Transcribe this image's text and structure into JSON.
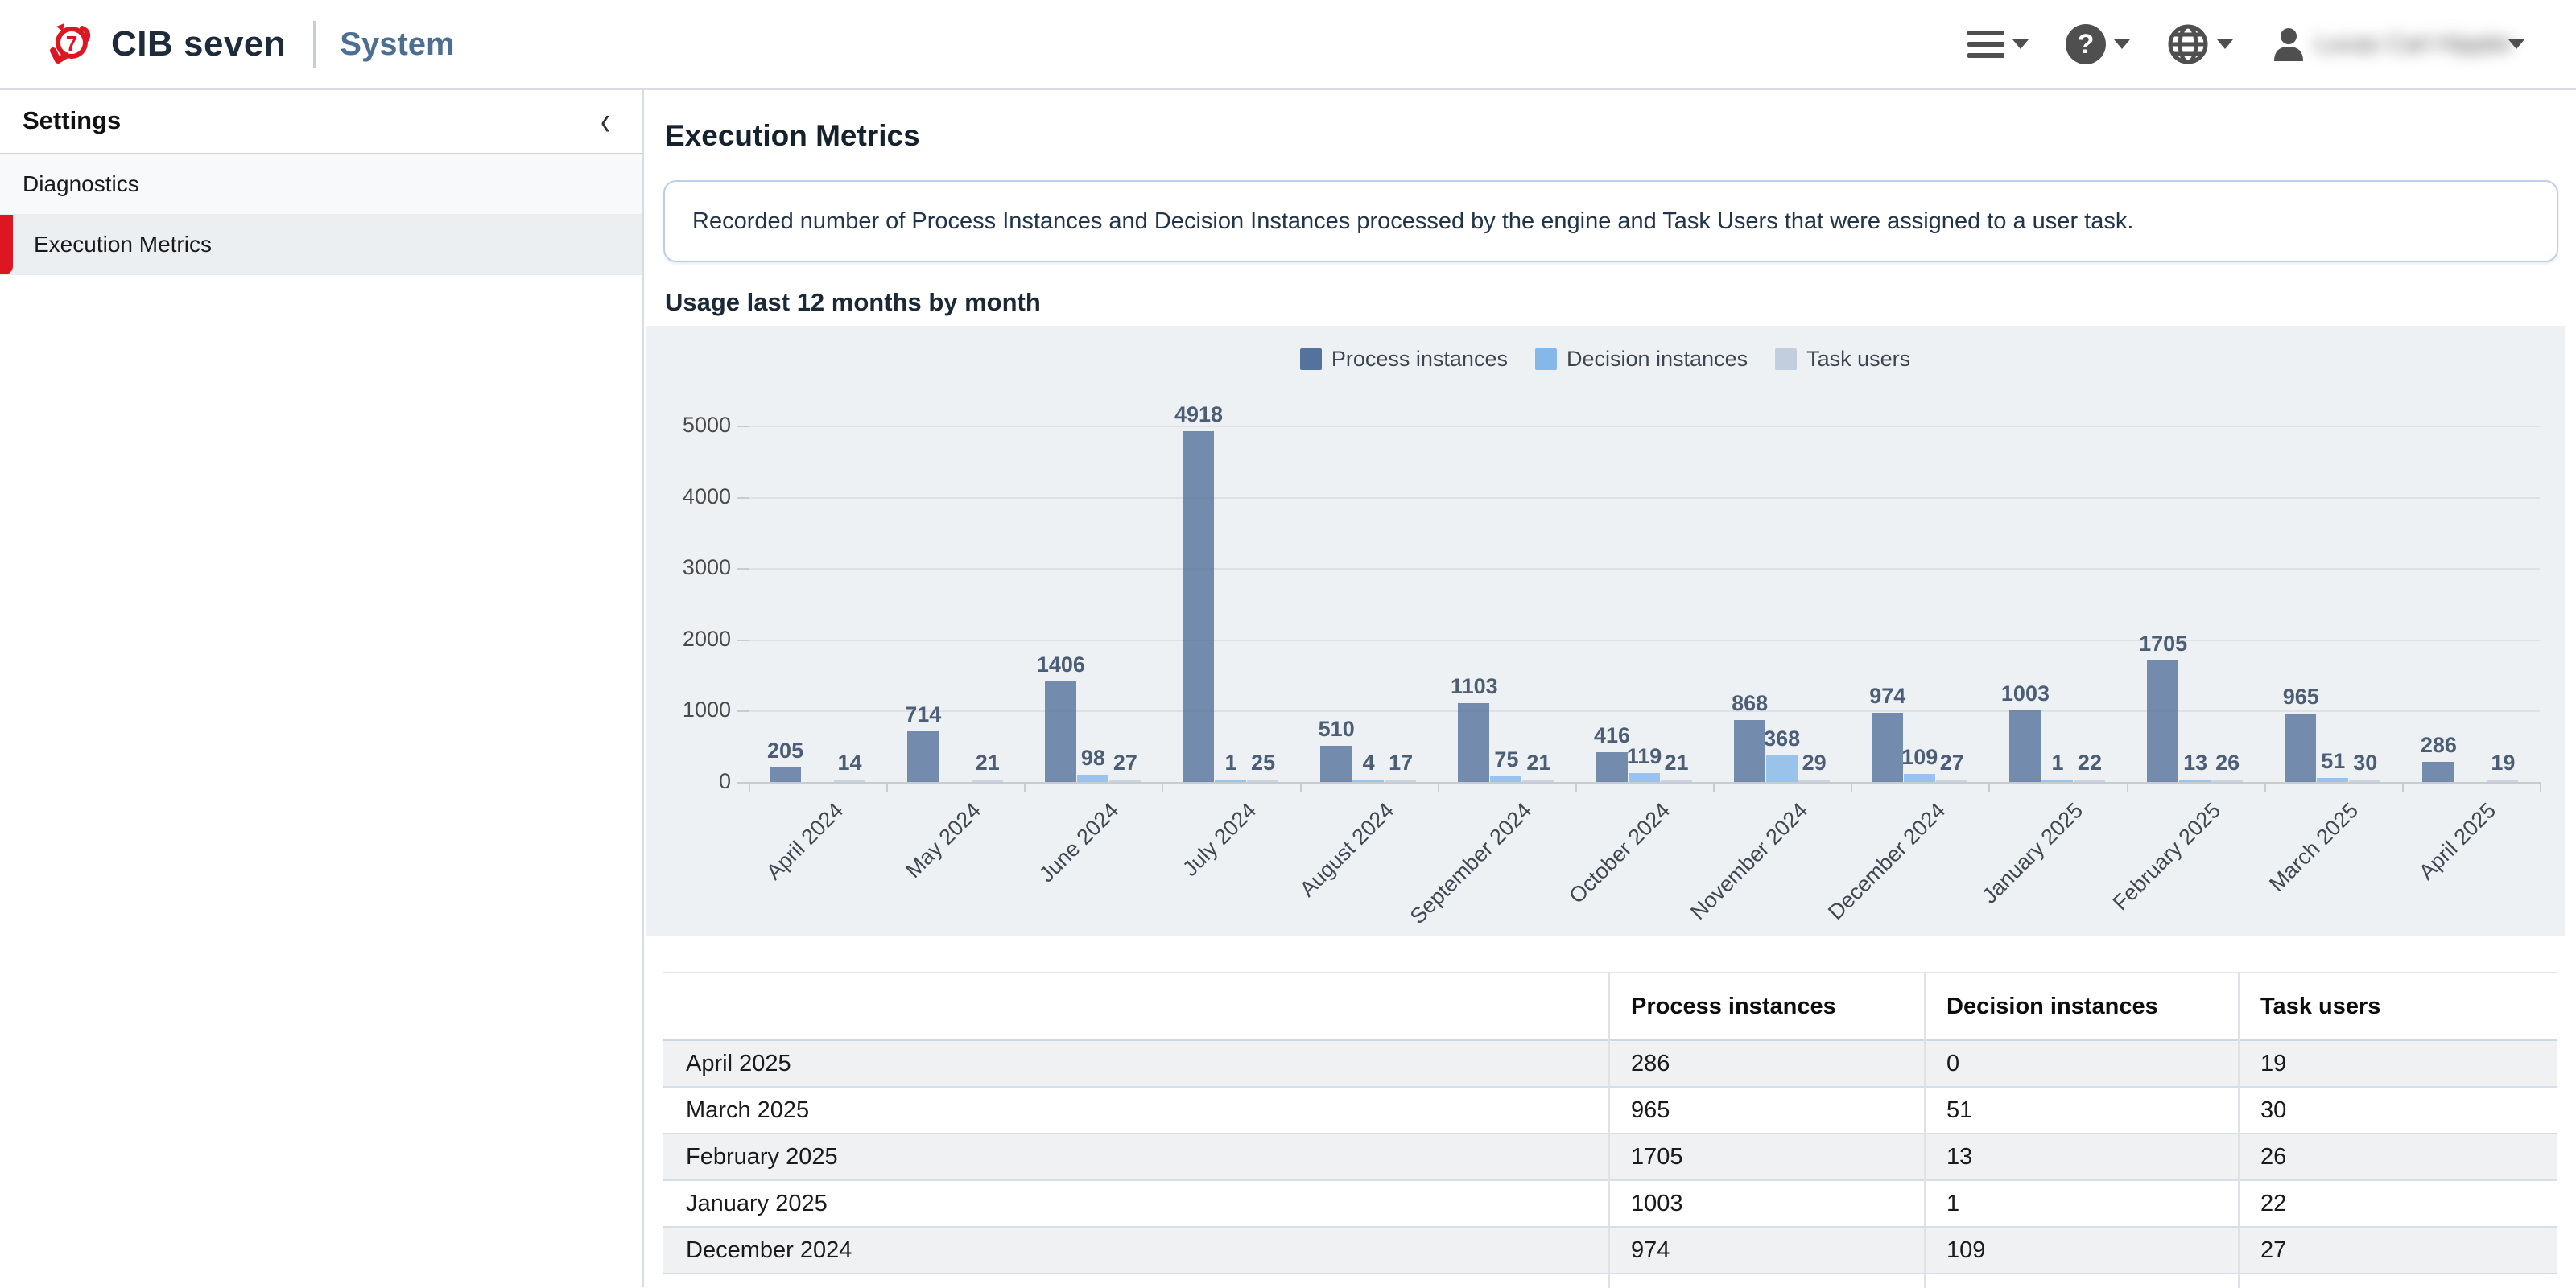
{
  "app": {
    "brand": "CIB seven",
    "module": "System"
  },
  "topbar": {
    "user_name": "Lucas Carl Hippler",
    "user_name_blurred": true,
    "icons": [
      "menu-icon",
      "help-icon",
      "language-globe-icon",
      "user-icon"
    ]
  },
  "sidebar": {
    "title": "Settings",
    "collapse_icon": "‹",
    "items": [
      {
        "label": "Diagnostics",
        "active": false
      },
      {
        "label": "Execution Metrics",
        "active": true
      }
    ]
  },
  "main": {
    "title": "Execution Metrics",
    "description": "Recorded number of Process Instances and Decision Instances processed by the engine and Task Users that were assigned to a user task.",
    "chart_title": "Usage last 12 months by month"
  },
  "colors": {
    "accent_red": "#dc1722",
    "brand_navy": "#1d2b3a",
    "module_blue": "#4c6e91",
    "chart_bg": "#eef1f4",
    "process_series": "#54739c",
    "decision_series": "#85b8e8",
    "task_series": "#c2cedd",
    "bar_label": "#4c5e76"
  },
  "chart_data": {
    "type": "bar",
    "title": "Usage last 12 months by month",
    "categories": [
      "April 2024",
      "May 2024",
      "June 2024",
      "July 2024",
      "August 2024",
      "September 2024",
      "October 2024",
      "November 2024",
      "December 2024",
      "January 2025",
      "February 2025",
      "March 2025",
      "April 2025"
    ],
    "series": [
      {
        "name": "Process instances",
        "color": "#54739c",
        "values": [
          205,
          714,
          1406,
          4918,
          510,
          1103,
          416,
          868,
          974,
          1003,
          1705,
          965,
          286
        ]
      },
      {
        "name": "Decision instances",
        "color": "#85b8e8",
        "values": [
          0,
          0,
          98,
          1,
          4,
          75,
          119,
          368,
          109,
          1,
          13,
          51,
          0
        ]
      },
      {
        "name": "Task users",
        "color": "#c2cedd",
        "values": [
          14,
          21,
          27,
          25,
          17,
          21,
          21,
          29,
          27,
          22,
          26,
          30,
          19
        ]
      }
    ],
    "y_ticks": [
      0,
      1000,
      2000,
      3000,
      4000,
      5000
    ],
    "ylim": [
      0,
      5000
    ],
    "xlabel": "",
    "ylabel": "",
    "grid": true,
    "legend_position": "top-center",
    "value_labels": "shown above bars, zero values unlabeled"
  },
  "table": {
    "columns": [
      "",
      "Process instances",
      "Decision instances",
      "Task users"
    ],
    "rows": [
      [
        "April 2025",
        "286",
        "0",
        "19"
      ],
      [
        "March 2025",
        "965",
        "51",
        "30"
      ],
      [
        "February 2025",
        "1705",
        "13",
        "26"
      ],
      [
        "January 2025",
        "1003",
        "1",
        "22"
      ],
      [
        "December 2024",
        "974",
        "109",
        "27"
      ]
    ],
    "partial_row_visible": true
  }
}
